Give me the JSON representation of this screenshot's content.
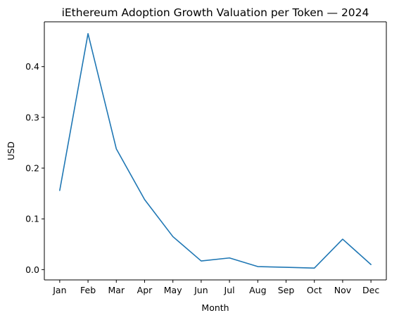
{
  "chart_data": {
    "type": "line",
    "title": "iEthereum Adoption Growth Valuation per Token — 2024",
    "xlabel": "Month",
    "ylabel": "USD",
    "categories": [
      "Jan",
      "Feb",
      "Mar",
      "Apr",
      "May",
      "Jun",
      "Jul",
      "Aug",
      "Sep",
      "Oct",
      "Nov",
      "Dec"
    ],
    "series": [
      {
        "color": "#1f77b4",
        "values": [
          0.156,
          0.465,
          0.238,
          0.138,
          0.065,
          0.017,
          0.023,
          0.006,
          0.0045,
          0.003,
          0.06,
          0.01
        ]
      }
    ],
    "ylim": [
      -0.0203,
      0.4883
    ],
    "yticks": [
      {
        "value": 0.0,
        "label": "0.0"
      },
      {
        "value": 0.1,
        "label": "0.1"
      },
      {
        "value": 0.2,
        "label": "0.2"
      },
      {
        "value": 0.3,
        "label": "0.3"
      },
      {
        "value": 0.4,
        "label": "0.4"
      }
    ],
    "grid": false,
    "legend": "none"
  }
}
